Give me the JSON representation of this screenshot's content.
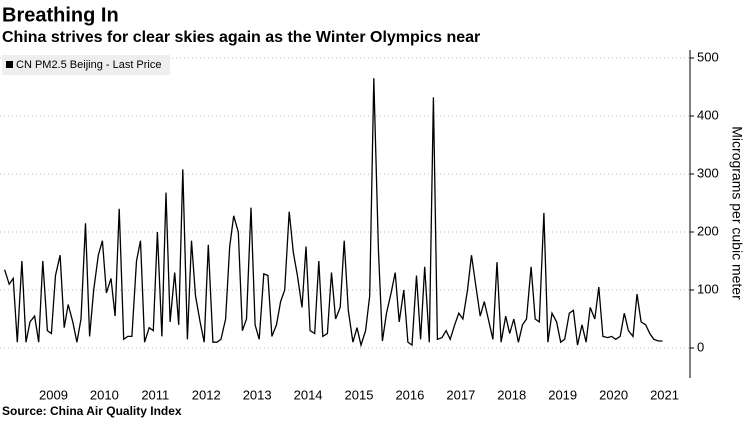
{
  "chart_data": {
    "type": "line",
    "title": "Breathing In",
    "subtitle": "China strives for clear skies again as the Winter Olympics near",
    "y_label": "Micrograms per cubic meter",
    "source": "Source: China Air Quality Index",
    "grid": true,
    "x": [
      2008.54,
      2008.63,
      2008.71,
      2008.79,
      2008.88,
      2008.96,
      2009.04,
      2009.13,
      2009.21,
      2009.29,
      2009.38,
      2009.46,
      2009.54,
      2009.63,
      2009.71,
      2009.79,
      2009.88,
      2009.96,
      2010.04,
      2010.13,
      2010.21,
      2010.29,
      2010.38,
      2010.46,
      2010.54,
      2010.63,
      2010.71,
      2010.79,
      2010.88,
      2010.96,
      2011.04,
      2011.13,
      2011.21,
      2011.29,
      2011.38,
      2011.46,
      2011.54,
      2011.63,
      2011.71,
      2011.79,
      2011.88,
      2011.96,
      2012.04,
      2012.13,
      2012.21,
      2012.29,
      2012.38,
      2012.46,
      2012.54,
      2012.63,
      2012.71,
      2012.79,
      2012.88,
      2012.96,
      2013.04,
      2013.13,
      2013.21,
      2013.29,
      2013.38,
      2013.46,
      2013.54,
      2013.63,
      2013.71,
      2013.79,
      2013.88,
      2013.96,
      2014.04,
      2014.13,
      2014.21,
      2014.29,
      2014.38,
      2014.46,
      2014.54,
      2014.63,
      2014.71,
      2014.79,
      2014.88,
      2014.96,
      2015.04,
      2015.13,
      2015.21,
      2015.29,
      2015.38,
      2015.46,
      2015.54,
      2015.63,
      2015.71,
      2015.79,
      2015.88,
      2015.96,
      2016.04,
      2016.13,
      2016.21,
      2016.29,
      2016.38,
      2016.46,
      2016.54,
      2016.63,
      2016.71,
      2016.79,
      2016.88,
      2016.96,
      2017.04,
      2017.13,
      2017.21,
      2017.29,
      2017.38,
      2017.46,
      2017.54,
      2017.63,
      2017.71,
      2017.79,
      2017.88,
      2017.96,
      2018.04,
      2018.13,
      2018.21,
      2018.29,
      2018.38,
      2018.46,
      2018.54,
      2018.63,
      2018.71,
      2018.79,
      2018.88,
      2018.96,
      2019.04,
      2019.13,
      2019.21,
      2019.29,
      2019.38,
      2019.46,
      2019.54,
      2019.63,
      2019.71,
      2019.79,
      2019.88,
      2019.96,
      2020.04,
      2020.13,
      2020.21,
      2020.29,
      2020.38,
      2020.46,
      2020.54,
      2020.63,
      2020.71,
      2020.79,
      2020.88,
      2020.96,
      2021.04,
      2021.13,
      2021.21,
      2021.29,
      2021.38,
      2021.46
    ],
    "series": [
      {
        "name": "CN PM2.5 Beijing - Last Price",
        "color": "#000000",
        "values": [
          135,
          110,
          120,
          10,
          150,
          10,
          45,
          55,
          10,
          150,
          30,
          25,
          125,
          160,
          35,
          75,
          45,
          10,
          50,
          215,
          20,
          100,
          160,
          185,
          95,
          120,
          55,
          240,
          15,
          20,
          20,
          150,
          185,
          10,
          35,
          30,
          200,
          20,
          268,
          45,
          130,
          40,
          308,
          15,
          185,
          90,
          45,
          10,
          178,
          10,
          10,
          15,
          50,
          175,
          228,
          200,
          30,
          50,
          242,
          40,
          15,
          128,
          125,
          20,
          40,
          80,
          100,
          235,
          165,
          125,
          70,
          175,
          30,
          25,
          150,
          20,
          25,
          130,
          50,
          70,
          185,
          65,
          10,
          35,
          5,
          30,
          90,
          465,
          170,
          12,
          60,
          95,
          130,
          45,
          100,
          10,
          5,
          125,
          15,
          140,
          10,
          432,
          15,
          18,
          30,
          15,
          40,
          60,
          50,
          100,
          160,
          110,
          55,
          80,
          50,
          15,
          148,
          10,
          55,
          25,
          50,
          10,
          40,
          50,
          140,
          50,
          45,
          233,
          10,
          60,
          45,
          10,
          15,
          60,
          65,
          5,
          40,
          10,
          70,
          50,
          105,
          20,
          18,
          20,
          15,
          20,
          60,
          30,
          20,
          93,
          45,
          40,
          25,
          15,
          12,
          12
        ]
      }
    ],
    "xlim": [
      2008.45,
      2022.0
    ],
    "xticks": [
      {
        "value": 2009.5,
        "label": "2009"
      },
      {
        "value": 2010.5,
        "label": "2010"
      },
      {
        "value": 2011.5,
        "label": "2011"
      },
      {
        "value": 2012.5,
        "label": "2012"
      },
      {
        "value": 2013.5,
        "label": "2013"
      },
      {
        "value": 2014.5,
        "label": "2014"
      },
      {
        "value": 2015.5,
        "label": "2015"
      },
      {
        "value": 2016.5,
        "label": "2016"
      },
      {
        "value": 2017.5,
        "label": "2017"
      },
      {
        "value": 2018.5,
        "label": "2018"
      },
      {
        "value": 2019.5,
        "label": "2019"
      },
      {
        "value": 2020.5,
        "label": "2020"
      },
      {
        "value": 2021.5,
        "label": "2021"
      }
    ],
    "ylim": [
      -50,
      515
    ],
    "yticks": [
      0,
      100,
      200,
      300,
      400,
      500
    ]
  }
}
